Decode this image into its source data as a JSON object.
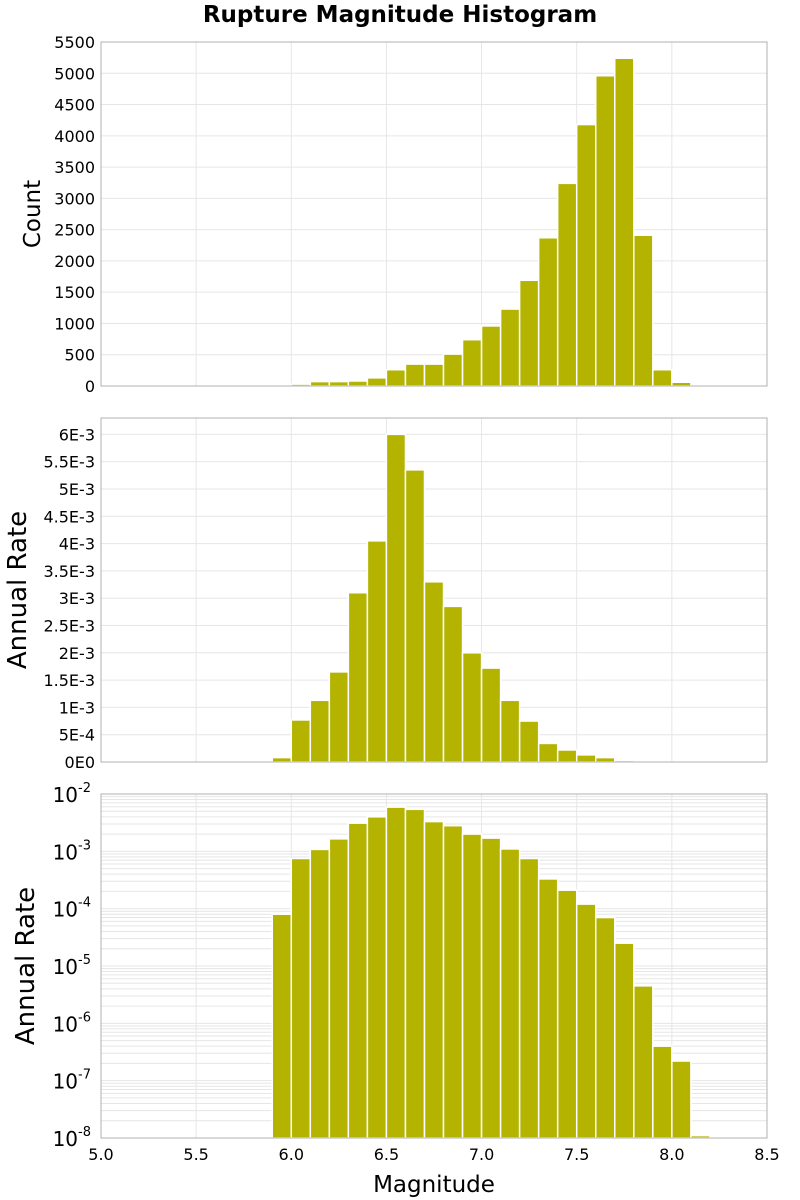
{
  "title": "Rupture Magnitude Histogram",
  "colors": {
    "bar": "#b3b300",
    "bar_stroke": "#ffffff",
    "grid": "#e6e6e6",
    "axis_border": "#b0b0b0",
    "text": "#000000"
  },
  "chart_data": [
    {
      "type": "bar",
      "ylabel": "Count",
      "xlim": [
        5.0,
        8.5
      ],
      "ylim": [
        0,
        5500
      ],
      "ytick_values": [
        0,
        500,
        1000,
        1500,
        2000,
        2500,
        3000,
        3500,
        4000,
        4500,
        5000,
        5500
      ],
      "ytick_labels": [
        "0",
        "500",
        "1000",
        "1500",
        "2000",
        "2500",
        "3000",
        "3500",
        "4000",
        "4500",
        "5000",
        "5500"
      ],
      "grid": true,
      "bin_width": 0.1,
      "x": [
        5.95,
        6.05,
        6.15,
        6.25,
        6.35,
        6.45,
        6.55,
        6.65,
        6.75,
        6.85,
        6.95,
        7.05,
        7.15,
        7.25,
        7.35,
        7.45,
        7.55,
        7.65,
        7.75,
        7.85,
        7.95,
        8.05,
        8.15
      ],
      "values": [
        10,
        30,
        70,
        70,
        80,
        130,
        260,
        350,
        350,
        510,
        740,
        960,
        1230,
        1690,
        2370,
        3240,
        4180,
        4960,
        5240,
        2410,
        260,
        60,
        0
      ]
    },
    {
      "type": "bar",
      "ylabel": "Annual Rate",
      "xlim": [
        5.0,
        8.5
      ],
      "ylim": [
        0,
        0.0063
      ],
      "ytick_values": [
        0,
        0.0005,
        0.001,
        0.0015,
        0.002,
        0.0025,
        0.003,
        0.0035,
        0.004,
        0.0045,
        0.005,
        0.0055,
        0.006
      ],
      "ytick_labels": [
        "0E0",
        "5E-4",
        "1E-3",
        "1.5E-3",
        "2E-3",
        "2.5E-3",
        "3E-3",
        "3.5E-3",
        "4E-3",
        "4.5E-3",
        "5E-3",
        "5.5E-3",
        "6E-3"
      ],
      "grid": true,
      "bin_width": 0.1,
      "x": [
        5.95,
        6.05,
        6.15,
        6.25,
        6.35,
        6.45,
        6.55,
        6.65,
        6.75,
        6.85,
        6.95,
        7.05,
        7.15,
        7.25,
        7.35,
        7.45,
        7.55,
        7.65,
        7.75,
        7.85,
        7.95,
        8.05,
        8.15
      ],
      "values": [
        8e-05,
        0.00077,
        0.00113,
        0.00165,
        0.0031,
        0.00405,
        0.006,
        0.00535,
        0.0033,
        0.00285,
        0.002,
        0.00172,
        0.00113,
        0.00075,
        0.00034,
        0.00022,
        0.00013,
        8e-05,
        3e-05,
        1e-05,
        0,
        0,
        0
      ]
    },
    {
      "type": "bar",
      "ylabel": "Annual Rate",
      "xlabel": "Magnitude",
      "yscale": "log",
      "xlim": [
        5.0,
        8.5
      ],
      "ylim": [
        1e-08,
        0.01
      ],
      "xticks": [
        "5.0",
        "5.5",
        "6.0",
        "6.5",
        "7.0",
        "7.5",
        "8.0",
        "8.5"
      ],
      "ytick_bases": [
        "10",
        "10",
        "10",
        "10",
        "10",
        "10",
        "10"
      ],
      "ytick_exps": [
        "-2",
        "-3",
        "-4",
        "-5",
        "-6",
        "-7",
        "-8"
      ],
      "grid": true,
      "bin_width": 0.1,
      "x": [
        5.95,
        6.05,
        6.15,
        6.25,
        6.35,
        6.45,
        6.55,
        6.65,
        6.75,
        6.85,
        6.95,
        7.05,
        7.15,
        7.25,
        7.35,
        7.45,
        7.55,
        7.65,
        7.75,
        7.85,
        7.95,
        8.05,
        8.15
      ],
      "values": [
        8e-05,
        0.00075,
        0.00108,
        0.00165,
        0.0031,
        0.004,
        0.0059,
        0.0054,
        0.0033,
        0.0028,
        0.002,
        0.0017,
        0.0011,
        0.00075,
        0.00033,
        0.00021,
        0.00012,
        7e-05,
        2.5e-05,
        4.5e-06,
        4e-07,
        2.2e-07,
        1.1e-08
      ]
    }
  ]
}
